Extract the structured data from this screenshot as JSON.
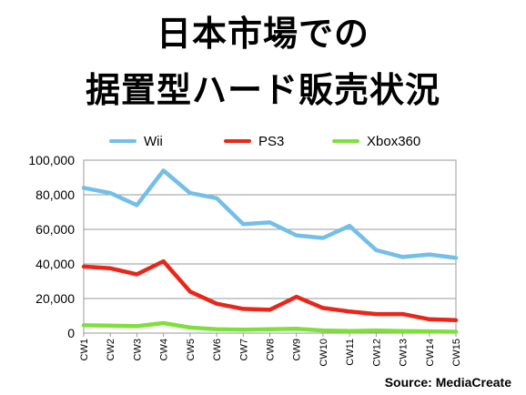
{
  "title": {
    "line1": "日本市場での",
    "line2": "据置型ハード販売状況"
  },
  "source": "Source: MediaCreate",
  "chart_data": {
    "type": "line",
    "categories": [
      "CW1",
      "CW2",
      "CW3",
      "CW4",
      "CW5",
      "CW6",
      "CW7",
      "CW8",
      "CW9",
      "CW10",
      "CW11",
      "CW12",
      "CW13",
      "CW14",
      "CW15"
    ],
    "series": [
      {
        "name": "Wii",
        "color": "#74bfe8",
        "values": [
          84000,
          81000,
          74000,
          94000,
          81000,
          78000,
          63000,
          64000,
          56500,
          55000,
          62000,
          48000,
          44000,
          45500,
          43500
        ]
      },
      {
        "name": "PS3",
        "color": "#e8261a",
        "values": [
          38500,
          37500,
          34000,
          41500,
          24000,
          17000,
          14000,
          13500,
          21000,
          14500,
          12500,
          11000,
          11000,
          8000,
          7500
        ]
      },
      {
        "name": "Xbox360",
        "color": "#7ee03a",
        "values": [
          4500,
          4300,
          4000,
          5800,
          3200,
          2200,
          2000,
          2200,
          2500,
          1500,
          1200,
          1500,
          1200,
          1000,
          800
        ]
      }
    ],
    "y_ticks": [
      "100,000",
      "80,000",
      "60,000",
      "40,000",
      "20,000",
      "0"
    ],
    "ylim": [
      0,
      100000
    ],
    "grid": true,
    "legend": "top"
  }
}
